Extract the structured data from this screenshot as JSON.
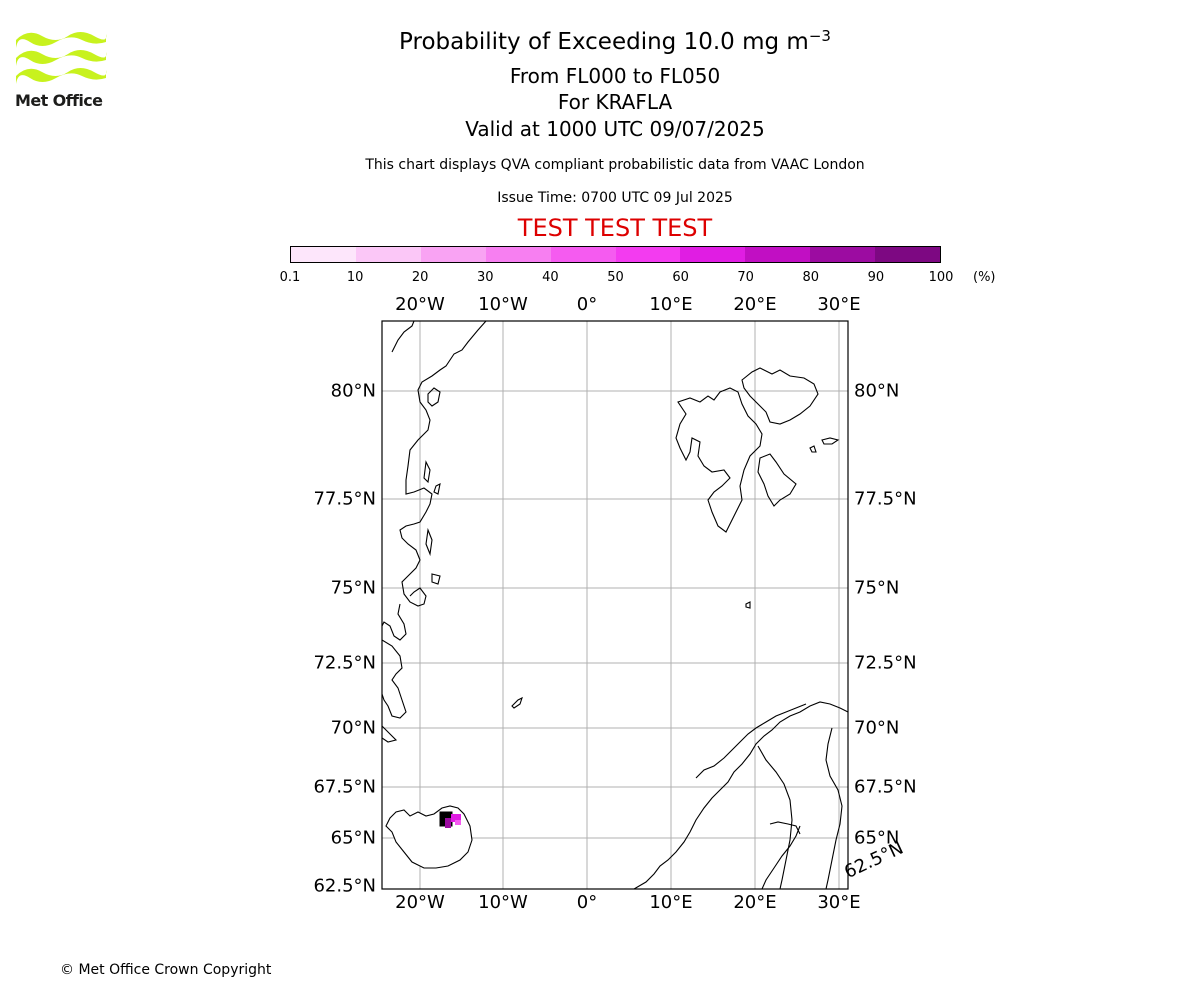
{
  "logo": {
    "text": "Met Office",
    "color": "#c8f21e"
  },
  "header": {
    "title_main": "Probability of Exceeding 10.0 mg m",
    "title_exp": "−3",
    "flight_levels": "From FL000 to FL050",
    "volcano": "For KRAFLA",
    "valid": "Valid at 1000 UTC 09/07/2025",
    "note": "This chart displays QVA compliant probabilistic data from VAAC London",
    "issue": "Issue Time: 0700 UTC 09 Jul 2025",
    "test_banner": "TEST TEST TEST",
    "test_color": "#dd0000"
  },
  "colorbar": {
    "ticks": [
      "0.1",
      "10",
      "20",
      "30",
      "40",
      "50",
      "60",
      "70",
      "80",
      "90",
      "100"
    ],
    "unit": "(%)",
    "colors": [
      "#fde6fb",
      "#fbc7f7",
      "#f9a3f3",
      "#f77ff1",
      "#f55bf0",
      "#f33bf0",
      "#e01de3",
      "#c10fc3",
      "#9c0ca1",
      "#7d0882"
    ]
  },
  "map": {
    "lon_labels": [
      "20°W",
      "10°W",
      "0°",
      "10°E",
      "20°E",
      "30°E"
    ],
    "lat_labels": [
      "80°N",
      "77.5°N",
      "75°N",
      "72.5°N",
      "70°N",
      "67.5°N",
      "65°N",
      "62.5°N"
    ],
    "volcano_location": {
      "name": "KRAFLA"
    }
  },
  "footer": {
    "copyright": "© Met Office Crown Copyright"
  }
}
